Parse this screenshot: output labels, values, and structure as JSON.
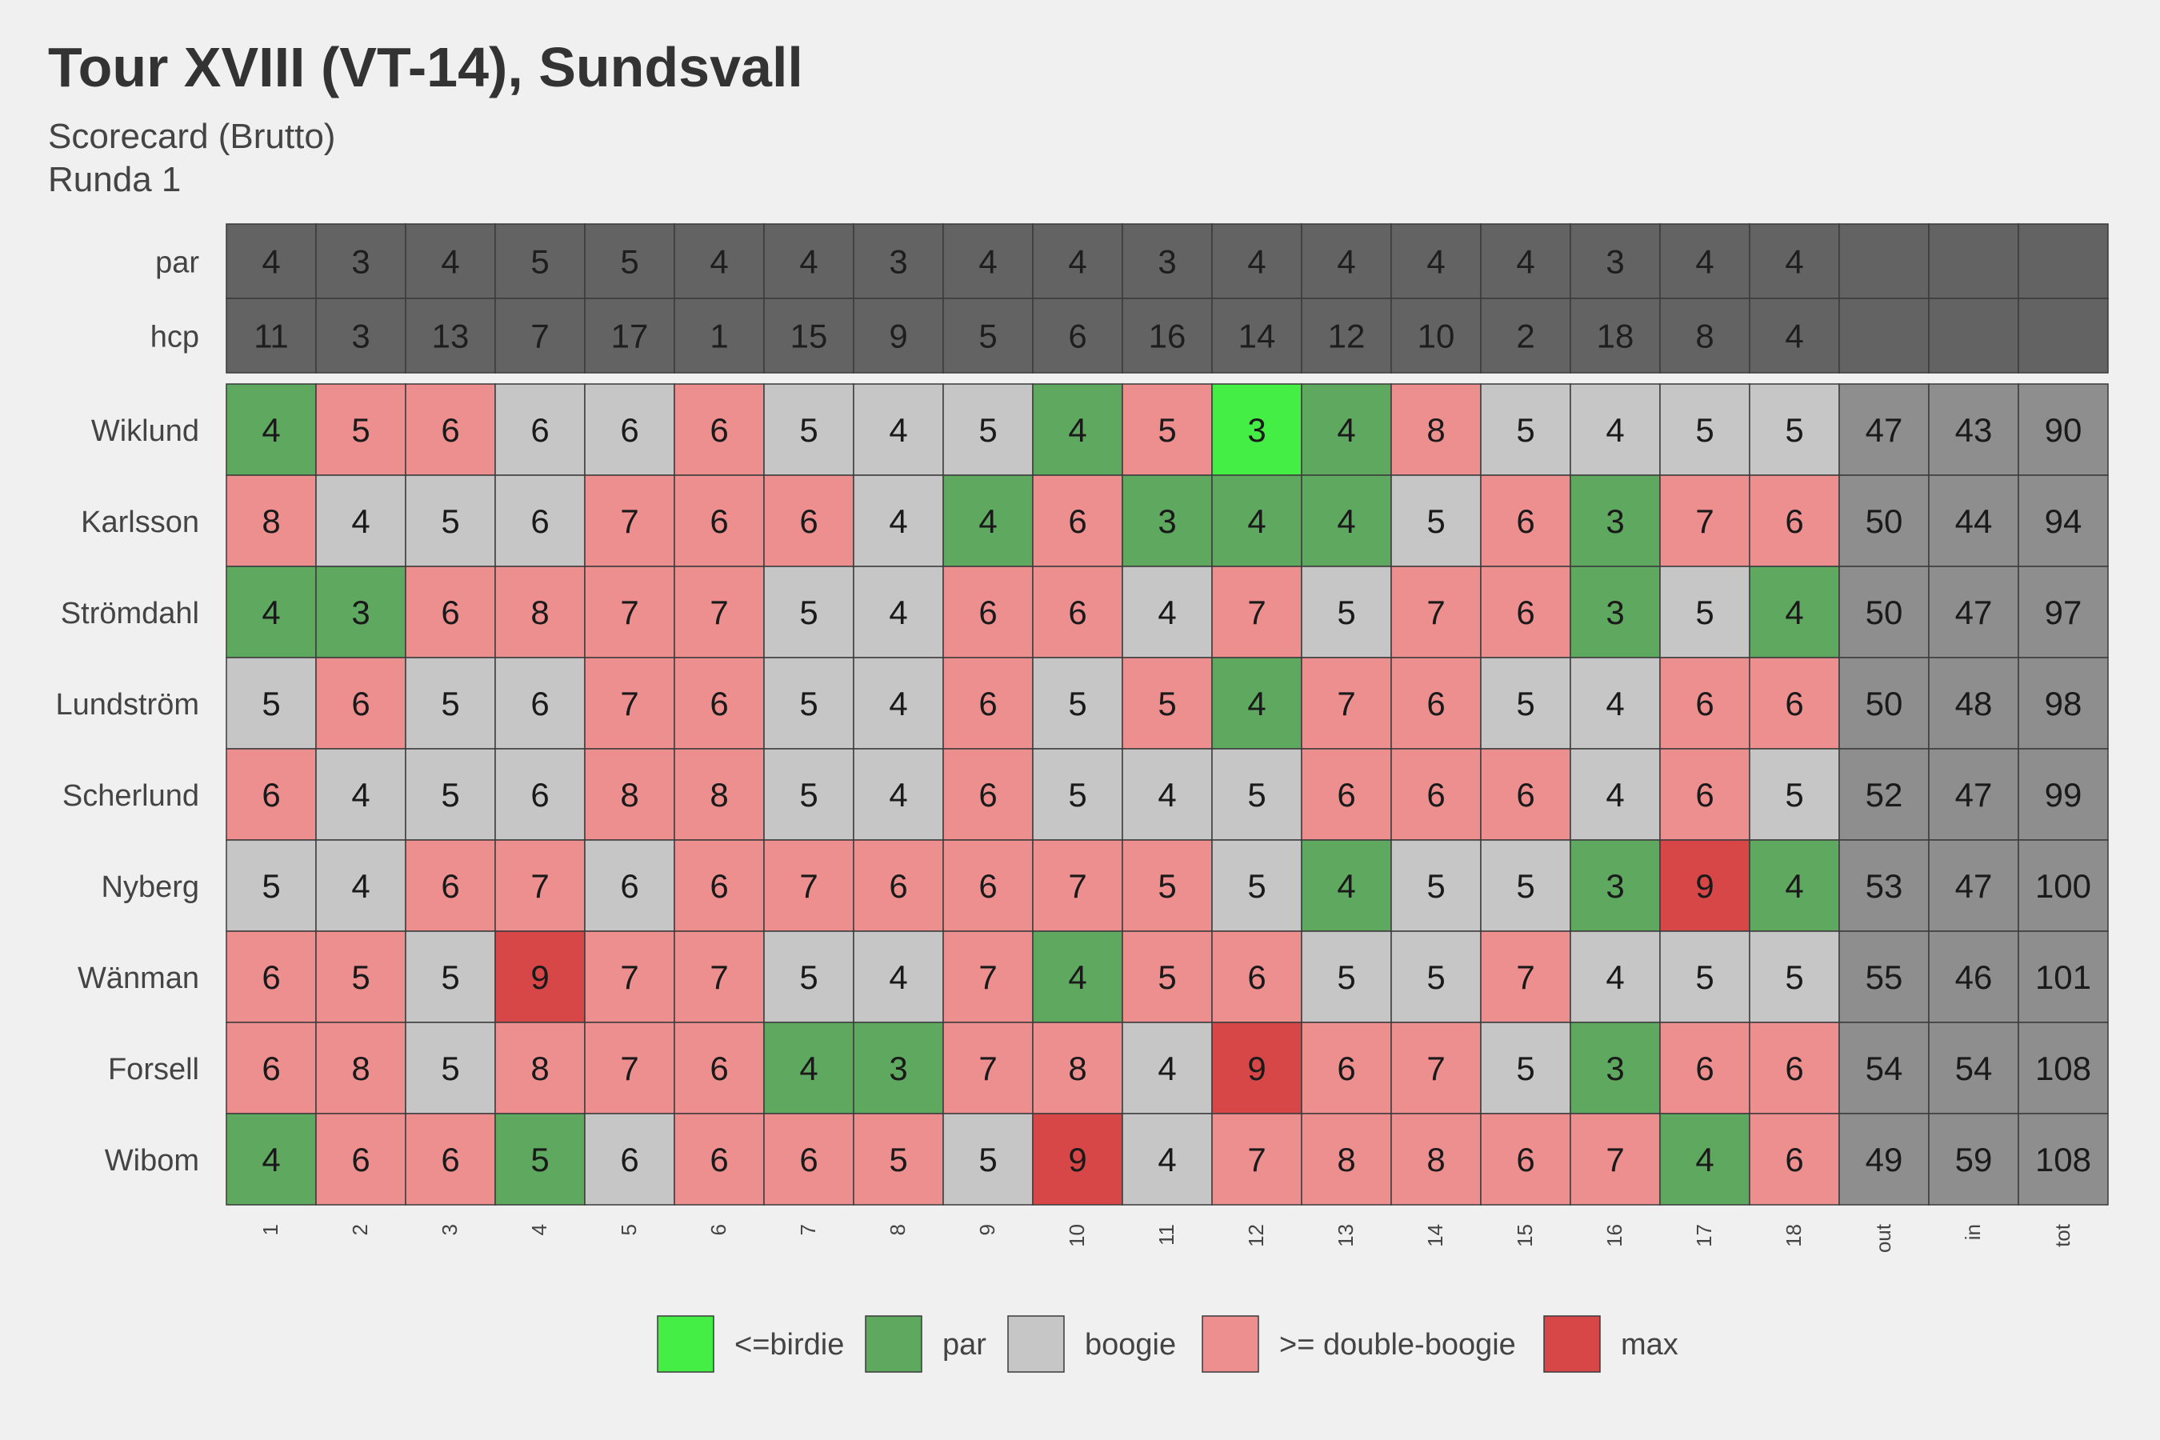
{
  "chart_data": {
    "type": "heatmap",
    "title": "Tour XVIII (VT-14), Sundsvall",
    "subtitle": "Scorecard (Brutto)",
    "subtitle2": "Runda 1",
    "columns": [
      "1",
      "2",
      "3",
      "4",
      "5",
      "6",
      "7",
      "8",
      "9",
      "10",
      "11",
      "12",
      "13",
      "14",
      "15",
      "16",
      "17",
      "18",
      "out",
      "in",
      "tot"
    ],
    "par_label": "par",
    "hcp_label": "hcp",
    "par": [
      4,
      3,
      4,
      5,
      5,
      4,
      4,
      3,
      4,
      4,
      3,
      4,
      4,
      4,
      4,
      3,
      4,
      4
    ],
    "hcp": [
      11,
      3,
      13,
      7,
      17,
      1,
      15,
      9,
      5,
      6,
      16,
      14,
      12,
      10,
      2,
      18,
      8,
      4
    ],
    "players": [
      {
        "name": "Wiklund",
        "scores": [
          4,
          5,
          6,
          6,
          6,
          6,
          5,
          4,
          5,
          4,
          5,
          3,
          4,
          8,
          5,
          4,
          5,
          5
        ],
        "out": 47,
        "in": 43,
        "tot": 90
      },
      {
        "name": "Karlsson",
        "scores": [
          8,
          4,
          5,
          6,
          7,
          6,
          6,
          4,
          4,
          6,
          3,
          4,
          4,
          5,
          6,
          3,
          7,
          6
        ],
        "out": 50,
        "in": 44,
        "tot": 94
      },
      {
        "name": "Strömdahl",
        "scores": [
          4,
          3,
          6,
          8,
          7,
          7,
          5,
          4,
          6,
          6,
          4,
          7,
          5,
          7,
          6,
          3,
          5,
          4
        ],
        "out": 50,
        "in": 47,
        "tot": 97
      },
      {
        "name": "Lundström",
        "scores": [
          5,
          6,
          5,
          6,
          7,
          6,
          5,
          4,
          6,
          5,
          5,
          4,
          7,
          6,
          5,
          4,
          6,
          6
        ],
        "out": 50,
        "in": 48,
        "tot": 98
      },
      {
        "name": "Scherlund",
        "scores": [
          6,
          4,
          5,
          6,
          8,
          8,
          5,
          4,
          6,
          5,
          4,
          5,
          6,
          6,
          6,
          4,
          6,
          5
        ],
        "out": 52,
        "in": 47,
        "tot": 99
      },
      {
        "name": "Nyberg",
        "scores": [
          5,
          4,
          6,
          7,
          6,
          6,
          7,
          6,
          6,
          7,
          5,
          5,
          4,
          5,
          5,
          3,
          9,
          4
        ],
        "out": 53,
        "in": 47,
        "tot": 100
      },
      {
        "name": "Wänman",
        "scores": [
          6,
          5,
          5,
          9,
          7,
          7,
          5,
          4,
          7,
          4,
          5,
          6,
          5,
          5,
          7,
          4,
          5,
          5
        ],
        "out": 55,
        "in": 46,
        "tot": 101
      },
      {
        "name": "Forsell",
        "scores": [
          6,
          8,
          5,
          8,
          7,
          6,
          4,
          3,
          7,
          8,
          4,
          9,
          6,
          7,
          5,
          3,
          6,
          6
        ],
        "out": 54,
        "in": 54,
        "tot": 108
      },
      {
        "name": "Wibom",
        "scores": [
          4,
          6,
          6,
          5,
          6,
          6,
          6,
          5,
          5,
          9,
          4,
          7,
          8,
          8,
          6,
          7,
          4,
          6
        ],
        "out": 49,
        "in": 59,
        "tot": 108
      }
    ],
    "legend": [
      {
        "label": "<=birdie",
        "color": "#44ee44"
      },
      {
        "label": "par",
        "color": "#5fa85f"
      },
      {
        "label": "boogie",
        "color": "#c6c6c6"
      },
      {
        "label": ">= double-boogie",
        "color": "#ee8f8f"
      },
      {
        "label": "max",
        "color": "#d84747"
      }
    ],
    "colors": {
      "header_bg": "#636363",
      "total_bg": "#8e8e8e",
      "background": "#f0f0f0",
      "cell_border": "#3a3a3a"
    }
  }
}
